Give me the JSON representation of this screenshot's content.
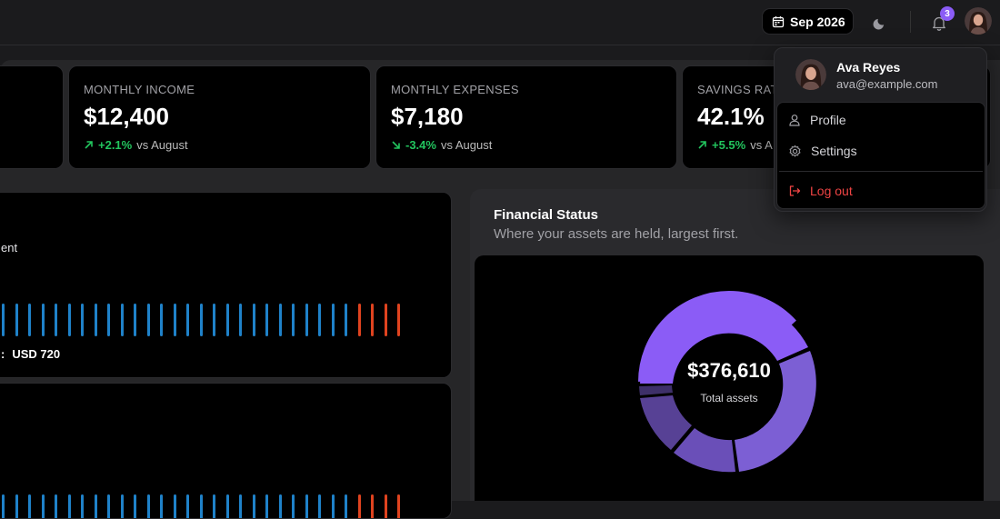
{
  "topbar": {
    "date_label": "Sep 2026",
    "notification_count": "3"
  },
  "stats": [
    {
      "label": "MONTHLY INCOME",
      "value": "$12,400",
      "change": "+2.1%",
      "compare": "vs August",
      "direction": "up"
    },
    {
      "label": "MONTHLY EXPENSES",
      "value": "$7,180",
      "change": "-3.4%",
      "compare": "vs August",
      "direction": "down"
    },
    {
      "label": "SAVINGS RAT",
      "value": "42.1%",
      "change": "+5.5%",
      "compare": "vs A",
      "direction": "up"
    }
  ],
  "left_panel": {
    "partial_label": "ent",
    "partial_amount_prefix": ":",
    "amount": "USD 720"
  },
  "financial_status": {
    "title": "Financial Status",
    "subtitle": "Where your assets are held, largest first.",
    "total_value": "$376,610",
    "total_label": "Total assets"
  },
  "user_menu": {
    "name": "Ava Reyes",
    "email": "ava@example.com",
    "items": [
      {
        "label": "Profile",
        "icon": "user-icon"
      },
      {
        "label": "Settings",
        "icon": "gear-icon"
      },
      {
        "label": "Log out",
        "icon": "logout-icon"
      }
    ]
  },
  "colors": {
    "accent": "#8b5cf6",
    "positive": "#22c55e",
    "danger": "#ef4444",
    "bar_blue": "#1f82c9",
    "bar_red": "#e0431f"
  }
}
